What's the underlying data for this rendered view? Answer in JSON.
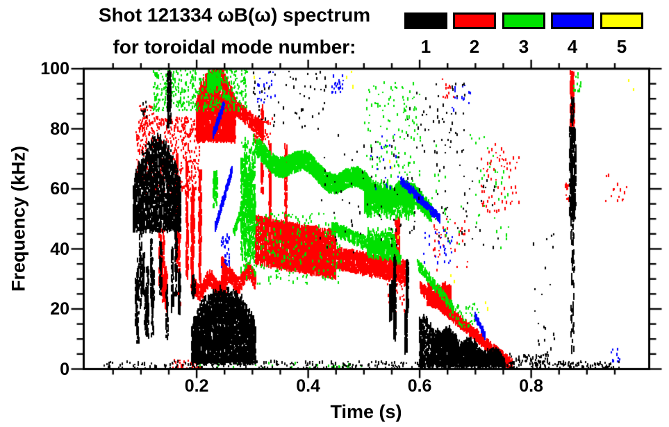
{
  "figure": {
    "title_line1": "Shot 121334 ωB(ω) spectrum",
    "title_line2": "for toroidal mode number:"
  },
  "legend": {
    "items": [
      {
        "label": "1",
        "color": "#000000"
      },
      {
        "label": "2",
        "color": "#ff0000"
      },
      {
        "label": "3",
        "color": "#00e000"
      },
      {
        "label": "4",
        "color": "#0000ff"
      },
      {
        "label": "5",
        "color": "#ffff00"
      }
    ]
  },
  "axes": {
    "x": {
      "label": "Time (s)",
      "tick_labels": [
        "0.2",
        "0.4",
        "0.6",
        "0.8"
      ],
      "tick_values": [
        0.2,
        0.4,
        0.6,
        0.8
      ],
      "minor_step": 0.05,
      "range": [
        0.0,
        1.014
      ]
    },
    "y": {
      "label": "Frequency (kHz)",
      "tick_labels": [
        "0",
        "20",
        "40",
        "60",
        "80",
        "100"
      ],
      "tick_values": [
        0,
        20,
        40,
        60,
        80,
        100
      ],
      "minor_step": 5,
      "range": [
        0,
        100
      ]
    }
  },
  "chart_data": {
    "type": "scatter",
    "title": "Shot 121334 ωB(ω) spectrum for toroidal mode number",
    "xlabel": "Time (s)",
    "ylabel": "Frequency (kHz)",
    "xlim": [
      0.0,
      1.014
    ],
    "ylim": [
      0,
      100
    ],
    "legend_position": "top-right",
    "grid": false,
    "modes": [
      {
        "mode": 1,
        "label": "1",
        "color": "#000000",
        "z": 4,
        "clusters": [
          {
            "kind": "dome",
            "t": [
              0.085,
              0.17
            ],
            "f": [
              46,
              76
            ],
            "n": 1700
          },
          {
            "kind": "vlines",
            "t": [
              0.088,
              0.168
            ],
            "f": [
              8,
              48
            ],
            "lines": 14,
            "n": 750
          },
          {
            "kind": "vline",
            "t": [
              0.146,
              0.153
            ],
            "f": [
              81,
              99
            ],
            "n": 90
          },
          {
            "kind": "speckle",
            "t": [
              0.1,
              0.112
            ],
            "f": [
              84,
              89
            ],
            "n": 12
          },
          {
            "kind": "dome",
            "t": [
              0.19,
              0.305
            ],
            "f": [
              2,
              26
            ],
            "n": 2700
          },
          {
            "kind": "vline",
            "t": [
              0.19,
              0.196
            ],
            "f": [
              24,
              31
            ],
            "n": 40
          },
          {
            "kind": "vlines",
            "t": [
              0.545,
              0.585
            ],
            "f": [
              3,
              38
            ],
            "lines": 5,
            "n": 750
          },
          {
            "kind": "wedge",
            "t": [
              0.598,
              0.752
            ],
            "f": [
              1,
              1
            ],
            "ftop": [
              16,
              3
            ],
            "n": 2300
          },
          {
            "kind": "speckle",
            "t": [
              0.57,
              0.68
            ],
            "f": [
              72,
              96
            ],
            "n": 55
          },
          {
            "kind": "vline",
            "t": [
              0.868,
              0.879
            ],
            "f": [
              50,
              80
            ],
            "n": 280
          },
          {
            "kind": "vline",
            "t": [
              0.87,
              0.876
            ],
            "f": [
              5,
              50
            ],
            "n": 55
          },
          {
            "kind": "vline",
            "t": [
              0.87,
              0.876
            ],
            "f": [
              81,
              90
            ],
            "n": 22
          },
          {
            "kind": "speckle",
            "t": [
              0.03,
              0.96
            ],
            "f": [
              0,
              2.5
            ],
            "n": 380
          },
          {
            "kind": "speckle",
            "t": [
              0.42,
              0.6
            ],
            "f": [
              38,
              78
            ],
            "n": 70
          },
          {
            "kind": "speckle",
            "t": [
              0.63,
              0.74
            ],
            "f": [
              40,
              68
            ],
            "n": 40
          },
          {
            "kind": "speckle",
            "t": [
              0.3,
              0.43
            ],
            "f": [
              80,
              99
            ],
            "n": 55
          },
          {
            "kind": "speckle",
            "t": [
              0.755,
              0.835
            ],
            "f": [
              0,
              5
            ],
            "n": 70
          },
          {
            "kind": "speckle",
            "t": [
              0.8,
              0.84
            ],
            "f": [
              5,
              50
            ],
            "n": 20
          }
        ]
      },
      {
        "mode": 2,
        "label": "2",
        "color": "#ff0000",
        "z": 1,
        "clusters": [
          {
            "kind": "speckle",
            "t": [
              0.09,
              0.205
            ],
            "f": [
              58,
              84
            ],
            "n": 520
          },
          {
            "kind": "speckle",
            "t": [
              0.095,
              0.125
            ],
            "f": [
              78,
              88
            ],
            "n": 50
          },
          {
            "kind": "vlines",
            "t": [
              0.13,
              0.17
            ],
            "f": [
              15,
              55
            ],
            "lines": 5,
            "n": 300
          },
          {
            "kind": "vlines",
            "t": [
              0.163,
              0.21
            ],
            "f": [
              25,
              92
            ],
            "lines": 5,
            "n": 750
          },
          {
            "kind": "dome",
            "t": [
              0.198,
              0.268
            ],
            "f": [
              76,
              100
            ],
            "n": 2000
          },
          {
            "kind": "band",
            "from": [
              0.265,
              88
            ],
            "to": [
              0.318,
              79
            ],
            "th": 5,
            "n": 300
          },
          {
            "kind": "speckle",
            "t": [
              0.3,
              0.335
            ],
            "f": [
              74,
              84
            ],
            "n": 50
          },
          {
            "kind": "vlines",
            "t": [
              0.31,
              0.36
            ],
            "f": [
              45,
              95
            ],
            "lines": 3,
            "n": 330
          },
          {
            "kind": "bandv",
            "from": [
              0.305,
              43
            ],
            "to": [
              0.45,
              38
            ],
            "th": 15,
            "n": 3900
          },
          {
            "kind": "band",
            "from": [
              0.45,
              37
            ],
            "to": [
              0.578,
              32
            ],
            "th": 7,
            "n": 1300
          },
          {
            "kind": "band",
            "from": [
              0.19,
              27
            ],
            "to": [
              0.305,
              31
            ],
            "th": 5,
            "n": 650,
            "wavy": true
          },
          {
            "kind": "vlines",
            "t": [
              0.23,
              0.262
            ],
            "f": [
              14,
              44
            ],
            "lines": 3,
            "n": 120
          },
          {
            "kind": "band",
            "from": [
              0.6,
              27
            ],
            "to": [
              0.765,
              1
            ],
            "th": 3.5,
            "n": 1000
          },
          {
            "kind": "blob",
            "t": [
              0.612,
              0.655
            ],
            "f": [
              20,
              29
            ],
            "n": 380
          },
          {
            "kind": "vline",
            "t": [
              0.555,
              0.563
            ],
            "f": [
              32,
              50
            ],
            "n": 130
          },
          {
            "kind": "speckle",
            "t": [
              0.54,
              0.575
            ],
            "f": [
              18,
              32
            ],
            "n": 40
          },
          {
            "kind": "vline",
            "t": [
              0.869,
              0.876
            ],
            "f": [
              81,
              88
            ],
            "n": 70
          },
          {
            "kind": "vline",
            "t": [
              0.869,
              0.876
            ],
            "f": [
              91,
              99
            ],
            "n": 80
          },
          {
            "kind": "speckle",
            "t": [
              0.86,
              0.878
            ],
            "f": [
              55,
              62
            ],
            "n": 22
          },
          {
            "kind": "speckle",
            "t": [
              0.71,
              0.78
            ],
            "f": [
              52,
              75
            ],
            "n": 65
          },
          {
            "kind": "speckle",
            "t": [
              0.62,
              0.69
            ],
            "f": [
              33,
              50
            ],
            "n": 38
          },
          {
            "kind": "speckle",
            "t": [
              0.93,
              0.97
            ],
            "f": [
              55,
              65
            ],
            "n": 14
          },
          {
            "kind": "speckle",
            "t": [
              0.64,
              0.66
            ],
            "f": [
              90,
              97
            ],
            "n": 12
          },
          {
            "kind": "speckle",
            "t": [
              0.15,
              0.21
            ],
            "f": [
              0,
              3
            ],
            "n": 40
          }
        ]
      },
      {
        "mode": 3,
        "label": "3",
        "color": "#00e000",
        "z": 2,
        "clusters": [
          {
            "kind": "speckle",
            "t": [
              0.12,
              0.29
            ],
            "f": [
              86,
              100
            ],
            "n": 430
          },
          {
            "kind": "blob",
            "t": [
              0.218,
              0.242
            ],
            "f": [
              92,
              100
            ],
            "n": 160
          },
          {
            "kind": "vline",
            "t": [
              0.228,
              0.236
            ],
            "f": [
              54,
              66
            ],
            "n": 60
          },
          {
            "kind": "band",
            "from": [
              0.265,
              45
            ],
            "to": [
              0.3,
              65
            ],
            "th": 3,
            "n": 150
          },
          {
            "kind": "blob",
            "t": [
              0.278,
              0.304
            ],
            "f": [
              30,
              78
            ],
            "n": 650
          },
          {
            "kind": "band",
            "from": [
              0.305,
              72
            ],
            "to": [
              0.62,
              54
            ],
            "th": 6,
            "n": 3300,
            "wavy": true
          },
          {
            "kind": "blob",
            "t": [
              0.5,
              0.59
            ],
            "f": [
              50,
              63
            ],
            "n": 900
          },
          {
            "kind": "band",
            "from": [
              0.44,
              47
            ],
            "to": [
              0.565,
              37
            ],
            "th": 4,
            "n": 450
          },
          {
            "kind": "blob",
            "t": [
              0.505,
              0.555
            ],
            "f": [
              36,
              47
            ],
            "n": 320
          },
          {
            "kind": "speckle",
            "t": [
              0.3,
              0.46
            ],
            "f": [
              28,
              52
            ],
            "n": 210
          },
          {
            "kind": "speckle",
            "t": [
              0.5,
              0.6
            ],
            "f": [
              64,
              96
            ],
            "n": 120
          },
          {
            "kind": "band",
            "from": [
              0.595,
              35
            ],
            "to": [
              0.66,
              20
            ],
            "th": 3,
            "n": 150
          },
          {
            "kind": "speckle",
            "t": [
              0.65,
              0.705
            ],
            "f": [
              14,
              22
            ],
            "n": 45
          },
          {
            "kind": "speckle",
            "t": [
              0.62,
              0.76
            ],
            "f": [
              40,
              78
            ],
            "n": 55
          },
          {
            "kind": "speckle",
            "t": [
              0.875,
              0.89
            ],
            "f": [
              92,
              99
            ],
            "n": 14
          },
          {
            "kind": "speckle",
            "t": [
              0.2,
              0.5
            ],
            "f": [
              0,
              2
            ],
            "n": 28
          }
        ]
      },
      {
        "mode": 4,
        "label": "4",
        "color": "#0000ff",
        "z": 3,
        "clusters": [
          {
            "kind": "band",
            "from": [
              0.232,
              47
            ],
            "to": [
              0.262,
              66
            ],
            "th": 2.5,
            "n": 200
          },
          {
            "kind": "band",
            "from": [
              0.228,
              78
            ],
            "to": [
              0.248,
              88
            ],
            "th": 2.5,
            "n": 120
          },
          {
            "kind": "speckle",
            "t": [
              0.243,
              0.258
            ],
            "f": [
              34,
              45
            ],
            "n": 35
          },
          {
            "kind": "band",
            "from": [
              0.565,
              63
            ],
            "to": [
              0.635,
              50
            ],
            "th": 2.5,
            "n": 260
          },
          {
            "kind": "band",
            "from": [
              0.698,
              18
            ],
            "to": [
              0.716,
              11
            ],
            "th": 2,
            "n": 70
          },
          {
            "kind": "speckle",
            "t": [
              0.6,
              0.67
            ],
            "f": [
              35,
              48
            ],
            "n": 28
          },
          {
            "kind": "speckle",
            "t": [
              0.44,
              0.462
            ],
            "f": [
              92,
              98
            ],
            "n": 22
          },
          {
            "kind": "speckle",
            "t": [
              0.295,
              0.34
            ],
            "f": [
              88,
              99
            ],
            "n": 22
          },
          {
            "kind": "speckle",
            "t": [
              0.51,
              0.56
            ],
            "f": [
              60,
              84
            ],
            "n": 18
          },
          {
            "kind": "speckle",
            "t": [
              0.655,
              0.69
            ],
            "f": [
              86,
              95
            ],
            "n": 14
          },
          {
            "kind": "speckle",
            "t": [
              0.94,
              0.96
            ],
            "f": [
              2,
              7
            ],
            "n": 10
          }
        ]
      },
      {
        "mode": 5,
        "label": "5",
        "color": "#ffff00",
        "z": 5,
        "clusters": [
          {
            "kind": "points",
            "pts": [
              [
                0.468,
                97
              ],
              [
                0.476,
                99
              ],
              [
                0.479,
                94
              ],
              [
                0.545,
                69
              ],
              [
                0.549,
                67
              ],
              [
                0.655,
                31
              ],
              [
                0.661,
                29
              ],
              [
                0.717,
                22
              ],
              [
                0.721,
                20
              ],
              [
                0.974,
                96
              ],
              [
                0.982,
                93
              ],
              [
                0.56,
                44
              ],
              [
                0.302,
                97
              ]
            ]
          }
        ]
      }
    ]
  }
}
